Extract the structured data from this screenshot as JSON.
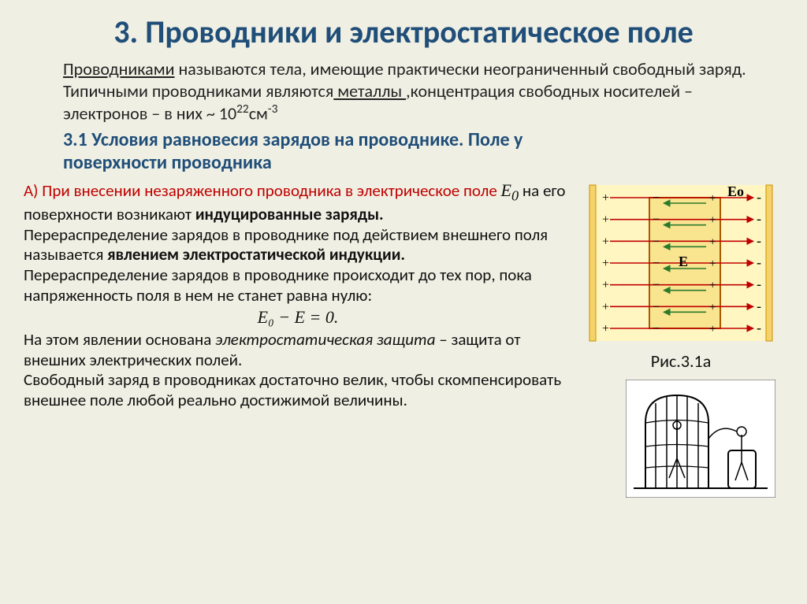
{
  "title": "3. Проводники и электростатическое поле",
  "intro": {
    "t1": "Проводниками",
    "t2": " называются тела, имеющие практически неограниченный свободный заряд. Типичными проводниками являются",
    "t3": " металлы ",
    "t4": ",концентрация свободных носителей – электронов – в них  ~ 10",
    "t4sup": "22",
    "t5": "см",
    "t5sup": "-3"
  },
  "section_heading_l1": "3.1 Условия равновесия зарядов на проводнике. Поле у",
  "section_heading_l2": "поверхности проводника",
  "body": {
    "a_red": "А) При внесении незаряженного проводника в электрическое поле ",
    "e0": "E",
    "e0_sub": "0",
    "a_after": " на его поверхности возникают ",
    "a_bold": "индуцированные заряды.",
    "p2_a": " Перераспределение зарядов в проводнике под действием внешнего поля называется ",
    "p2_b": "явлением электростатической индукции.",
    "p3": "Перераспределение зарядов в проводнике происходит до тех пор, пока напряженность поля в нем не станет равна нулю:",
    "eq": "E₀ − E = 0.",
    "p4_a": "На этом явлении основана ",
    "p4_i": "электростатическая защита",
    "p4_b": " – защита от внешних электрических полей.",
    "p5": " Свободный заряд в проводниках достаточно велик, чтобы скомпенсировать внешнее поле любой реально достижимой величины."
  },
  "figure": {
    "caption": "Рис.3.1а",
    "label_Eo": "Eo",
    "label_E": "E",
    "n_rows": 7,
    "colors": {
      "plate": "#f5d36a",
      "plate_stroke": "#c79200",
      "field_bg": "#fff6c2",
      "cond_fill": "#f9e48f",
      "cond_stroke": "#a85a00",
      "arrow_red": "#c00000",
      "arrow_green": "#2b7a2b",
      "text": "#000000"
    }
  }
}
